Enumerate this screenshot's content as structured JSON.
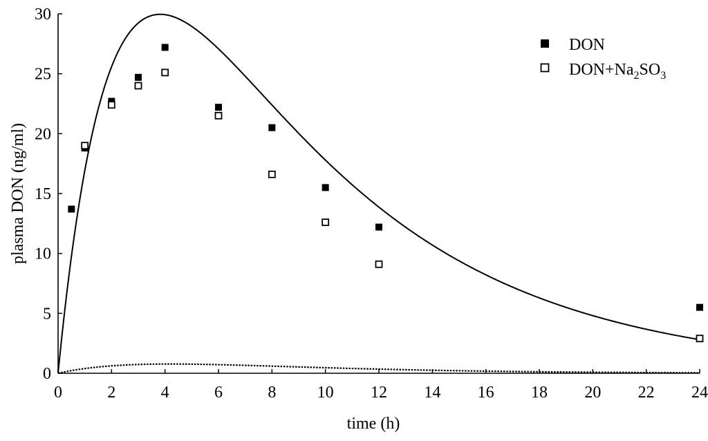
{
  "chart_data": {
    "type": "scatter",
    "xlabel": "time (h)",
    "ylabel": "plasma DON (ng/ml)",
    "xlim": [
      0,
      24
    ],
    "ylim": [
      0,
      30
    ],
    "x_ticks": [
      0,
      2,
      4,
      6,
      8,
      10,
      12,
      14,
      16,
      18,
      20,
      22,
      24
    ],
    "y_ticks": [
      0,
      5,
      10,
      15,
      20,
      25,
      30
    ],
    "grid": false,
    "legend_position": "top-right",
    "series": [
      {
        "name": "DON",
        "legend": {
          "text": "DON"
        },
        "marker": "filled-square",
        "color": "#000000",
        "x": [
          0.5,
          1,
          2,
          3,
          4,
          6,
          8,
          10,
          12,
          24
        ],
        "y": [
          13.7,
          18.8,
          22.7,
          24.7,
          27.2,
          22.2,
          20.5,
          15.5,
          12.2,
          5.5
        ],
        "fit": {
          "style": "solid",
          "model": "one-compartment",
          "ka": 0.45,
          "ke": 0.135,
          "A": 71.7
        }
      },
      {
        "name": "DON+Na2SO3",
        "legend": {
          "text": "DON+Na",
          "sub1": "2",
          "mid": "SO",
          "sub2": "3"
        },
        "marker": "open-square",
        "color": "#000000",
        "x": [
          1,
          2,
          3,
          4,
          6,
          8,
          10,
          12,
          24
        ],
        "y": [
          19.0,
          22.4,
          24.0,
          25.1,
          21.5,
          16.6,
          12.6,
          9.1,
          2.9
        ],
        "fit": {
          "style": "dotted",
          "model": "one-compartment",
          "ka": 0.24,
          "ke": 0.235,
          "ka_ref": 0.48,
          "A": 99.5
        }
      }
    ]
  }
}
